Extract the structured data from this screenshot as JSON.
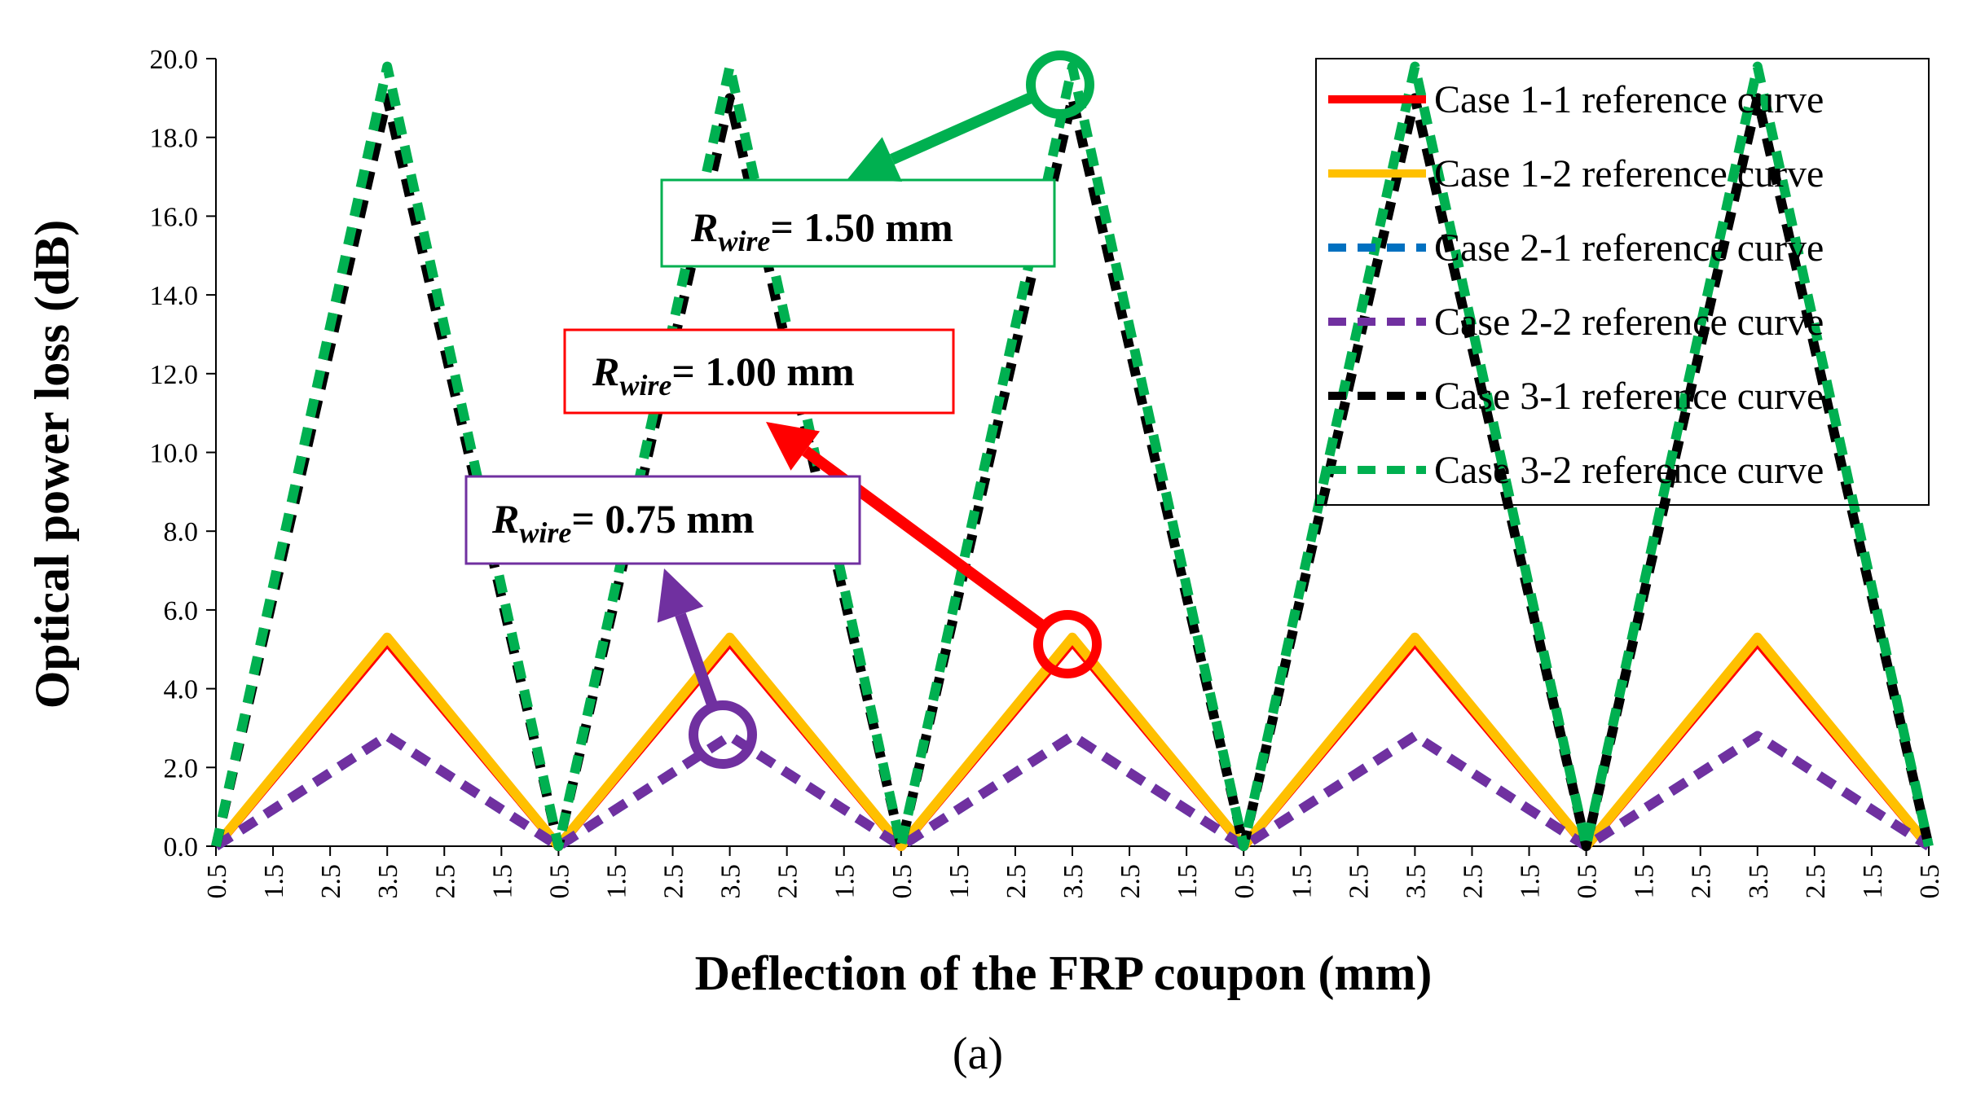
{
  "chart_data": {
    "type": "line",
    "ylabel": "Optical power loss (dB)",
    "xlabel": "Deflection of the FRP coupon (mm)",
    "ylim": [
      0,
      20
    ],
    "y_ticks": [
      "0.0",
      "2.0",
      "4.0",
      "6.0",
      "8.0",
      "10.0",
      "12.0",
      "14.0",
      "16.0",
      "18.0",
      "20.0"
    ],
    "x_ticks": [
      "0.5",
      "1.5",
      "2.5",
      "3.5",
      "2.5",
      "1.5",
      "0.5",
      "1.5",
      "2.5",
      "3.5",
      "2.5",
      "1.5",
      "0.5",
      "1.5",
      "2.5",
      "3.5",
      "2.5",
      "1.5",
      "0.5",
      "1.5",
      "2.5",
      "3.5",
      "2.5",
      "1.5",
      "0.5",
      "1.5",
      "2.5",
      "3.5",
      "2.5",
      "1.5",
      "0.5"
    ],
    "x": [
      0.5,
      3.5,
      0.5,
      3.5,
      0.5,
      3.5,
      0.5,
      3.5,
      0.5,
      3.5,
      0.5
    ],
    "series": [
      {
        "name": "Case 1-1 reference curve",
        "color": "#ff0000",
        "dash": "solid",
        "values": [
          0,
          5.2,
          0,
          5.2,
          0,
          5.2,
          0,
          5.2,
          0,
          5.2,
          0
        ]
      },
      {
        "name": "Case 1-2 reference curve",
        "color": "#ffc000",
        "dash": "solid",
        "values": [
          0,
          5.3,
          0,
          5.3,
          0,
          5.3,
          0,
          5.3,
          0,
          5.3,
          0
        ]
      },
      {
        "name": "Case 2-1 reference curve",
        "color": "#0070c0",
        "dash": "dashed",
        "values": [
          0,
          2.8,
          0,
          2.8,
          0,
          2.8,
          0,
          2.8,
          0,
          2.8,
          0
        ]
      },
      {
        "name": "Case 2-2 reference curve",
        "color": "#7030a0",
        "dash": "dashed",
        "values": [
          0,
          2.8,
          0,
          2.8,
          0,
          2.8,
          0,
          2.8,
          0,
          2.8,
          0
        ]
      },
      {
        "name": "Case 3-1 reference curve",
        "color": "#000000",
        "dash": "dashed",
        "values": [
          0,
          19.0,
          0,
          19.0,
          0,
          19.0,
          0,
          19.0,
          0,
          19.0,
          0
        ]
      },
      {
        "name": "Case 3-2 reference curve",
        "color": "#00b050",
        "dash": "dashed",
        "values": [
          0,
          19.8,
          0,
          19.8,
          0,
          19.8,
          0,
          19.8,
          0,
          19.8,
          0
        ]
      }
    ],
    "legend_position": "top-right",
    "annotations": [
      {
        "label": "R",
        "sub": "wire",
        "value": "= 1.50 mm",
        "color": "#00b050"
      },
      {
        "label": "R",
        "sub": "wire",
        "value": "= 1.00 mm",
        "color": "#ff0000"
      },
      {
        "label": "R",
        "sub": "wire",
        "value": "= 0.75 mm",
        "color": "#7030a0"
      }
    ],
    "caption": "(a)"
  }
}
